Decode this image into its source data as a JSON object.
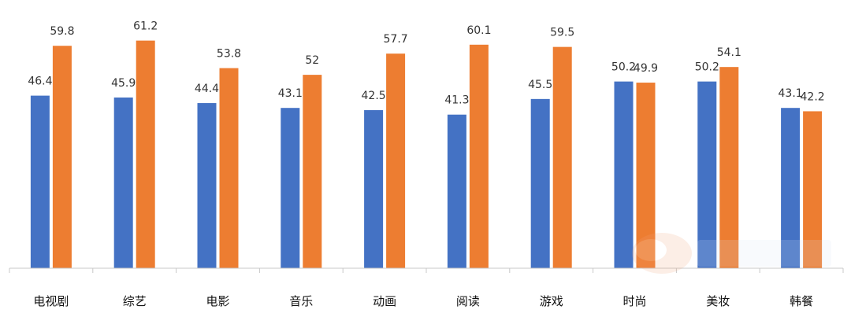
{
  "chart_data": {
    "type": "bar",
    "categories": [
      "电视剧",
      "综艺",
      "电影",
      "音乐",
      "动画",
      "阅读",
      "游戏",
      "时尚",
      "美妆",
      "韩餐"
    ],
    "series": [
      {
        "values": [
          46.4,
          45.9,
          44.4,
          43.1,
          42.5,
          41.3,
          45.5,
          50.2,
          50.2,
          43.1
        ],
        "color": "#4472C4"
      },
      {
        "values": [
          59.8,
          61.2,
          53.8,
          52,
          57.7,
          60.1,
          59.5,
          49.9,
          54.1,
          42.2
        ],
        "color": "#ED7D31"
      }
    ],
    "title": "",
    "xlabel": "",
    "ylabel": "",
    "ylim": [
      0,
      70
    ],
    "grid": false,
    "legend": "none",
    "data_labels": true
  }
}
